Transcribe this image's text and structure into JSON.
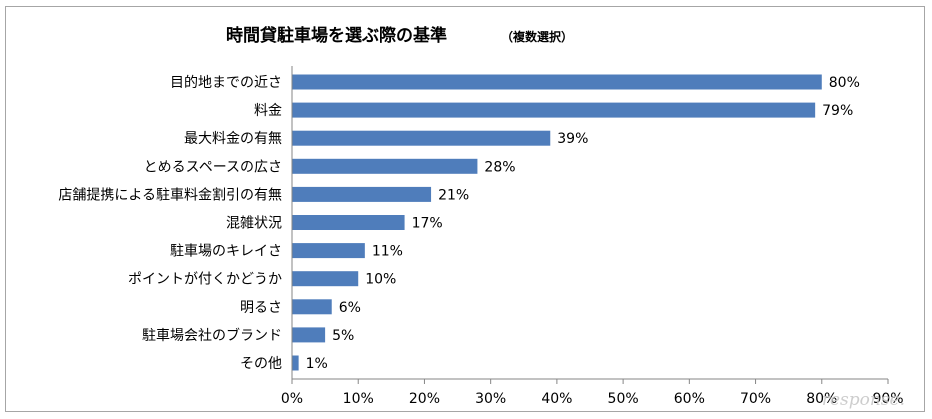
{
  "chart_data": {
    "type": "bar",
    "orientation": "horizontal",
    "title": "時間貸駐車場を選ぶ際の基準",
    "subtitle": "（複数選択）",
    "categories": [
      "目的地までの近さ",
      "料金",
      "最大料金の有無",
      "とめるスペースの広さ",
      "店舗提携による駐車料金割引の有無",
      "混雑状況",
      "駐車場のキレイさ",
      "ポイントが付くかどうか",
      "明るさ",
      "駐車場会社のブランド",
      "その他"
    ],
    "values": [
      80,
      79,
      39,
      28,
      21,
      17,
      11,
      10,
      6,
      5,
      1
    ],
    "value_labels": [
      "80%",
      "79%",
      "39%",
      "28%",
      "21%",
      "17%",
      "11%",
      "10%",
      "6%",
      "5%",
      "1%"
    ],
    "xlim": [
      0,
      90
    ],
    "xticks": [
      "0%",
      "10%",
      "20%",
      "30%",
      "40%",
      "50%",
      "60%",
      "70%",
      "80%",
      "90%"
    ],
    "bar_color": "#4f7dbb",
    "grid": false,
    "watermark": "response."
  }
}
